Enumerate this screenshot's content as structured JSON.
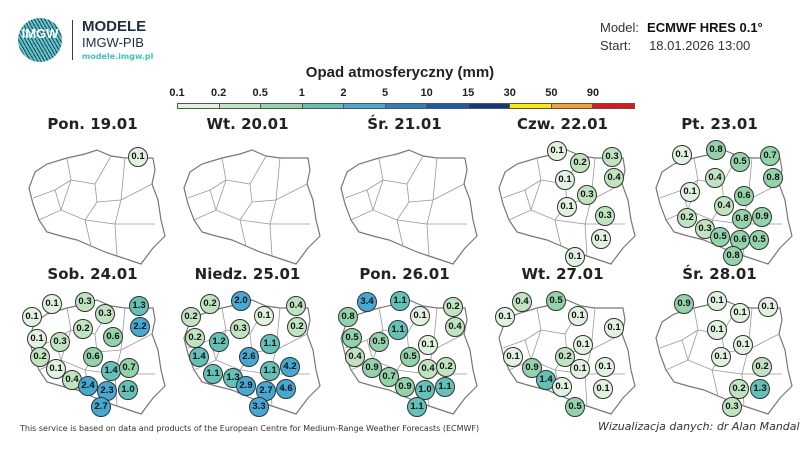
{
  "header": {
    "logo_text": "IMGW",
    "brand_title": "MODELE",
    "brand_subtitle": "IMGW-PIB",
    "brand_url": "modele.imgw.pl",
    "model_label": "Model:",
    "model_value": "ECMWF HRES 0.1°",
    "start_label": "Start:",
    "start_value": "18.01.2026 13:00"
  },
  "legend": {
    "title": "Opad atmosferyczny (mm)",
    "ticks": [
      "0.1",
      "0.2",
      "0.5",
      "1",
      "2",
      "5",
      "10",
      "15",
      "30",
      "50",
      "90"
    ],
    "colors": [
      "#e2f2e0",
      "#bfe4bf",
      "#93d3aa",
      "#62c2b8",
      "#44a9d3",
      "#2c80c2",
      "#1b5aa8",
      "#0e3a7e",
      "#ffe900",
      "#f5a030",
      "#e81313"
    ]
  },
  "days": [
    {
      "title": "Pon. 19.01",
      "values": [
        "0.1"
      ]
    },
    {
      "title": "Wt. 20.01",
      "values": []
    },
    {
      "title": "Śr. 21.01",
      "values": []
    },
    {
      "title": "Czw. 22.01",
      "values": [
        "0.1",
        "0.2",
        "0.3",
        "0.4",
        "0.1",
        "0.3",
        "0.1",
        "0.3",
        "0.1",
        "0.1"
      ]
    },
    {
      "title": "Pt. 23.01",
      "values": [
        "0.1",
        "0.8",
        "0.5",
        "0.7",
        "0.8",
        "0.4",
        "0.1",
        "0.6",
        "0.4",
        "0.9",
        "0.8",
        "0.2",
        "0.3",
        "0.5",
        "0.6",
        "0.5",
        "0.8"
      ]
    },
    {
      "title": "Sob. 24.01",
      "values": [
        "0.1",
        "0.3",
        "0.1",
        "0.3",
        "1.3",
        "2.2",
        "0.2",
        "0.1",
        "0.3",
        "0.6",
        "0.2",
        "0.6",
        "0.1",
        "1.4",
        "0.7",
        "0.4",
        "2.4",
        "2.3",
        "1.0",
        "2.7"
      ]
    },
    {
      "title": "Niedz. 25.01",
      "values": [
        "0.2",
        "2.0",
        "0.4",
        "0.1",
        "0.2",
        "0.3",
        "0.2",
        "0.2",
        "1.2",
        "1.1",
        "1.4",
        "2.6",
        "1.1",
        "1.1",
        "4.2",
        "1.3",
        "2.9",
        "2.7",
        "4.6",
        "3.3"
      ]
    },
    {
      "title": "Pon. 26.01",
      "values": [
        "3.4",
        "1.1",
        "0.2",
        "0.1",
        "0.8",
        "0.4",
        "1.1",
        "0.5",
        "0.5",
        "0.1",
        "0.4",
        "0.5",
        "0.9",
        "0.4",
        "0.2",
        "0.7",
        "0.9",
        "1.0",
        "1.1",
        "1.1"
      ]
    },
    {
      "title": "Wt. 27.01",
      "values": [
        "0.4",
        "0.5",
        "0.1",
        "0.1",
        "0.1",
        "0.1",
        "0.2",
        "0.1",
        "0.9",
        "0.1",
        "0.1",
        "1.4",
        "0.1",
        "0.1",
        "0.5"
      ]
    },
    {
      "title": "Śr. 28.01",
      "values": [
        "0.9",
        "0.1",
        "0.1",
        "0.1",
        "0.1",
        "0.1",
        "0.1",
        "0.2",
        "0.2",
        "1.3",
        "0.3"
      ]
    }
  ],
  "footer": {
    "disclaimer": "This service is based on data and products of the European Centre for Medium-Range Weather Forecasts (ECMWF)",
    "credit": "Wizualizacja danych: dr Alan Mandal"
  }
}
